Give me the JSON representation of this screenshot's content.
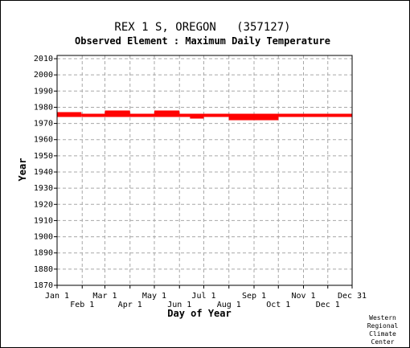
{
  "chart_data": {
    "type": "scatter",
    "title": "REX 1 S, OREGON   (357127)",
    "subtitle": "Observed Element : Maximum Daily Temperature",
    "xlabel": "Day of Year",
    "ylabel": "Year",
    "ylim": [
      1870,
      2012
    ],
    "yticks": [
      1870,
      1880,
      1890,
      1900,
      1910,
      1920,
      1930,
      1940,
      1950,
      1960,
      1970,
      1980,
      1990,
      2000,
      2010
    ],
    "xlim": [
      1,
      365
    ],
    "xticks_top": [
      {
        "label": "Jan 1",
        "day": 1
      },
      {
        "label": "Mar 1",
        "day": 60
      },
      {
        "label": "May 1",
        "day": 121
      },
      {
        "label": "Jul 1",
        "day": 182
      },
      {
        "label": "Sep 1",
        "day": 244
      },
      {
        "label": "Nov 1",
        "day": 305
      },
      {
        "label": "Dec 31",
        "day": 365
      }
    ],
    "xticks_bottom": [
      {
        "label": "Feb 1",
        "day": 32
      },
      {
        "label": "Apr 1",
        "day": 91
      },
      {
        "label": "Jun 1",
        "day": 152
      },
      {
        "label": "Aug 1",
        "day": 213
      },
      {
        "label": "Oct 1",
        "day": 274
      },
      {
        "label": "Dec 1",
        "day": 335
      }
    ],
    "grid": true,
    "series_color": "#ff0000",
    "segments": [
      {
        "year": 1976,
        "start_day": 1,
        "end_day": 31
      },
      {
        "year": 1975,
        "start_day": 1,
        "end_day": 31
      },
      {
        "year": 1975,
        "start_day": 31,
        "end_day": 182
      },
      {
        "year": 1977,
        "start_day": 60,
        "end_day": 91
      },
      {
        "year": 1977,
        "start_day": 121,
        "end_day": 152
      },
      {
        "year": 1974,
        "start_day": 165,
        "end_day": 182
      },
      {
        "year": 1975,
        "start_day": 182,
        "end_day": 365
      },
      {
        "year": 1974,
        "start_day": 213,
        "end_day": 274
      },
      {
        "year": 1973,
        "start_day": 213,
        "end_day": 274
      }
    ]
  },
  "credit": [
    "Western",
    "Regional",
    "Climate",
    "Center"
  ]
}
